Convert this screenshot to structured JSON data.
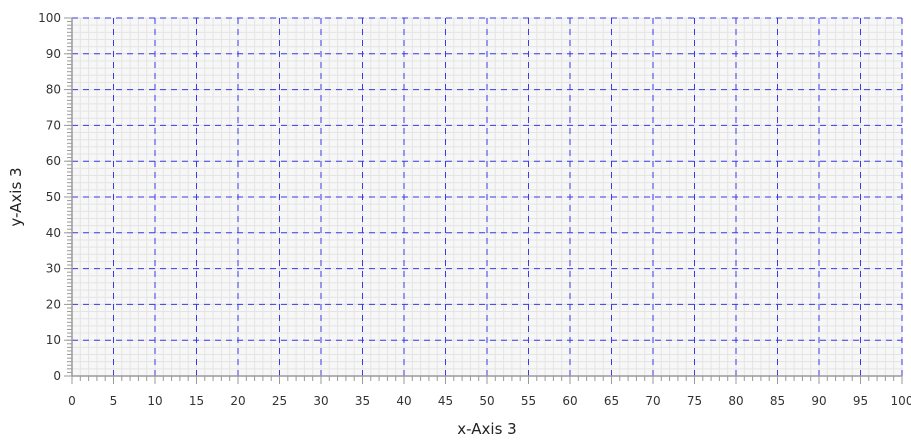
{
  "chart_data": {
    "type": "scatter",
    "title": "",
    "xlabel": "x-Axis 3",
    "ylabel": "y-Axis 3",
    "xlim": [
      0,
      100
    ],
    "ylim": [
      0,
      100
    ],
    "x_ticks": [
      "0",
      "5",
      "10",
      "15",
      "20",
      "25",
      "30",
      "35",
      "40",
      "45",
      "50",
      "55",
      "60",
      "65",
      "70",
      "75",
      "80",
      "85",
      "90",
      "95",
      "100"
    ],
    "y_ticks": [
      "0",
      "10",
      "20",
      "30",
      "40",
      "50",
      "60",
      "70",
      "80",
      "90",
      "100"
    ],
    "x_tick_values": [
      0,
      5,
      10,
      15,
      20,
      25,
      30,
      35,
      40,
      45,
      50,
      55,
      60,
      65,
      70,
      75,
      80,
      85,
      90,
      95,
      100
    ],
    "y_tick_values": [
      0,
      10,
      20,
      30,
      40,
      50,
      60,
      70,
      80,
      90,
      100
    ],
    "series": [],
    "grid": true,
    "minor_grid": true,
    "colors": {
      "major_grid": "#3a3ae6",
      "minor_grid": "#e4e4e4",
      "axis": "#9a9a9a",
      "plot_background": "#f7f7f7"
    }
  }
}
